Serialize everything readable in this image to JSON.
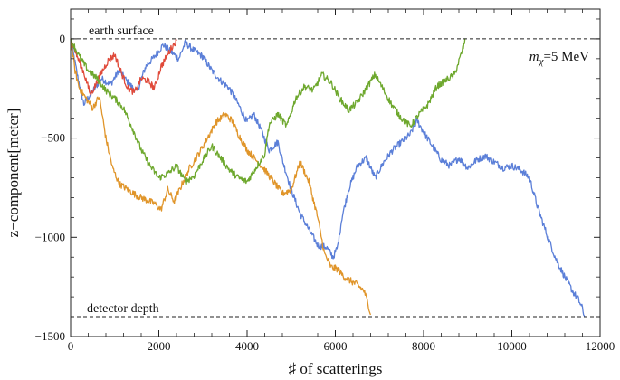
{
  "chart_data": {
    "type": "line",
    "xlabel": "♯ of scatterings",
    "ylabel": "z−component[meter]",
    "xlim": [
      0,
      12000
    ],
    "ylim": [
      -1500,
      150
    ],
    "xticks": [
      {
        "value": 0,
        "label": "0"
      },
      {
        "value": 2000,
        "label": "2000"
      },
      {
        "value": 4000,
        "label": "4000"
      },
      {
        "value": 6000,
        "label": "6000"
      },
      {
        "value": 8000,
        "label": "8000"
      },
      {
        "value": 10000,
        "label": "10000"
      },
      {
        "value": 12000,
        "label": "12000"
      }
    ],
    "yticks": [
      {
        "value": 0,
        "label": "0"
      },
      {
        "value": -500,
        "label": "−500"
      },
      {
        "value": -1000,
        "label": "−1000"
      },
      {
        "value": -1500,
        "label": "−1500"
      }
    ],
    "reference_lines": [
      {
        "y": 0,
        "label": "earth surface",
        "style": "dashed"
      },
      {
        "y": -1400,
        "label": "detector depth",
        "style": "dashed"
      }
    ],
    "annotation": {
      "mass_symbol": "m",
      "mass_subscript": "χ",
      "mass_value": "=5 MeV"
    },
    "series": [
      {
        "color": "#5b7fd8",
        "points": [
          [
            0,
            0
          ],
          [
            150,
            -180
          ],
          [
            300,
            -330
          ],
          [
            450,
            -280
          ],
          [
            700,
            -200
          ],
          [
            900,
            -230
          ],
          [
            1100,
            -160
          ],
          [
            1300,
            -220
          ],
          [
            1500,
            -270
          ],
          [
            1700,
            -140
          ],
          [
            1900,
            -90
          ],
          [
            2100,
            -30
          ],
          [
            2300,
            -70
          ],
          [
            2450,
            -100
          ],
          [
            2600,
            -20
          ],
          [
            2800,
            -60
          ],
          [
            3000,
            -90
          ],
          [
            3200,
            -160
          ],
          [
            3400,
            -210
          ],
          [
            3600,
            -250
          ],
          [
            3800,
            -330
          ],
          [
            4000,
            -420
          ],
          [
            4150,
            -380
          ],
          [
            4300,
            -450
          ],
          [
            4500,
            -560
          ],
          [
            4700,
            -520
          ],
          [
            4800,
            -610
          ],
          [
            5000,
            -760
          ],
          [
            5200,
            -880
          ],
          [
            5400,
            -960
          ],
          [
            5600,
            -1040
          ],
          [
            5800,
            -1050
          ],
          [
            5950,
            -1100
          ],
          [
            6050,
            -1050
          ],
          [
            6150,
            -900
          ],
          [
            6300,
            -760
          ],
          [
            6500,
            -640
          ],
          [
            6700,
            -600
          ],
          [
            6900,
            -700
          ],
          [
            7100,
            -620
          ],
          [
            7300,
            -560
          ],
          [
            7500,
            -520
          ],
          [
            7700,
            -480
          ],
          [
            7850,
            -410
          ],
          [
            8000,
            -470
          ],
          [
            8200,
            -540
          ],
          [
            8400,
            -610
          ],
          [
            8600,
            -640
          ],
          [
            8800,
            -600
          ],
          [
            9000,
            -650
          ],
          [
            9200,
            -610
          ],
          [
            9400,
            -590
          ],
          [
            9600,
            -620
          ],
          [
            9800,
            -650
          ],
          [
            10000,
            -640
          ],
          [
            10200,
            -660
          ],
          [
            10400,
            -700
          ],
          [
            10600,
            -860
          ],
          [
            10800,
            -990
          ],
          [
            11000,
            -1110
          ],
          [
            11200,
            -1200
          ],
          [
            11400,
            -1280
          ],
          [
            11500,
            -1310
          ],
          [
            11600,
            -1360
          ],
          [
            11650,
            -1400
          ]
        ]
      },
      {
        "color": "#e0952a",
        "points": [
          [
            0,
            0
          ],
          [
            100,
            -160
          ],
          [
            200,
            -250
          ],
          [
            350,
            -300
          ],
          [
            500,
            -350
          ],
          [
            650,
            -290
          ],
          [
            800,
            -500
          ],
          [
            950,
            -650
          ],
          [
            1100,
            -730
          ],
          [
            1300,
            -760
          ],
          [
            1500,
            -790
          ],
          [
            1700,
            -810
          ],
          [
            1900,
            -830
          ],
          [
            2050,
            -860
          ],
          [
            2200,
            -760
          ],
          [
            2350,
            -820
          ],
          [
            2550,
            -720
          ],
          [
            2700,
            -650
          ],
          [
            2900,
            -580
          ],
          [
            3100,
            -500
          ],
          [
            3300,
            -420
          ],
          [
            3500,
            -380
          ],
          [
            3650,
            -410
          ],
          [
            3800,
            -480
          ],
          [
            4000,
            -560
          ],
          [
            4200,
            -610
          ],
          [
            4400,
            -660
          ],
          [
            4600,
            -720
          ],
          [
            4800,
            -780
          ],
          [
            5000,
            -760
          ],
          [
            5200,
            -620
          ],
          [
            5400,
            -720
          ],
          [
            5600,
            -900
          ],
          [
            5750,
            -1080
          ],
          [
            5900,
            -1150
          ],
          [
            6050,
            -1160
          ],
          [
            6200,
            -1200
          ],
          [
            6350,
            -1220
          ],
          [
            6500,
            -1240
          ],
          [
            6650,
            -1270
          ],
          [
            6750,
            -1340
          ],
          [
            6800,
            -1390
          ]
        ]
      },
      {
        "color": "#e04a3a",
        "points": [
          [
            0,
            0
          ],
          [
            150,
            -90
          ],
          [
            300,
            -170
          ],
          [
            450,
            -280
          ],
          [
            550,
            -240
          ],
          [
            700,
            -170
          ],
          [
            850,
            -110
          ],
          [
            1000,
            -80
          ],
          [
            1150,
            -170
          ],
          [
            1300,
            -250
          ],
          [
            1450,
            -270
          ],
          [
            1600,
            -200
          ],
          [
            1750,
            -210
          ],
          [
            1900,
            -250
          ],
          [
            2050,
            -140
          ],
          [
            2200,
            -80
          ],
          [
            2300,
            -40
          ],
          [
            2400,
            -10
          ]
        ]
      },
      {
        "color": "#6ea82e",
        "points": [
          [
            0,
            0
          ],
          [
            200,
            -90
          ],
          [
            400,
            -160
          ],
          [
            600,
            -200
          ],
          [
            800,
            -260
          ],
          [
            1000,
            -300
          ],
          [
            1200,
            -350
          ],
          [
            1400,
            -450
          ],
          [
            1600,
            -560
          ],
          [
            1800,
            -640
          ],
          [
            2000,
            -700
          ],
          [
            2200,
            -680
          ],
          [
            2400,
            -640
          ],
          [
            2600,
            -720
          ],
          [
            2800,
            -690
          ],
          [
            3000,
            -610
          ],
          [
            3200,
            -540
          ],
          [
            3400,
            -600
          ],
          [
            3600,
            -660
          ],
          [
            3800,
            -700
          ],
          [
            4000,
            -720
          ],
          [
            4200,
            -650
          ],
          [
            4400,
            -580
          ],
          [
            4500,
            -430
          ],
          [
            4700,
            -380
          ],
          [
            4900,
            -440
          ],
          [
            5100,
            -300
          ],
          [
            5300,
            -240
          ],
          [
            5500,
            -260
          ],
          [
            5700,
            -180
          ],
          [
            5900,
            -220
          ],
          [
            6100,
            -300
          ],
          [
            6300,
            -360
          ],
          [
            6500,
            -320
          ],
          [
            6700,
            -250
          ],
          [
            6900,
            -180
          ],
          [
            7100,
            -260
          ],
          [
            7300,
            -340
          ],
          [
            7500,
            -400
          ],
          [
            7700,
            -440
          ],
          [
            7900,
            -380
          ],
          [
            8100,
            -330
          ],
          [
            8300,
            -240
          ],
          [
            8500,
            -210
          ],
          [
            8700,
            -180
          ],
          [
            8850,
            -80
          ],
          [
            8950,
            0
          ]
        ]
      }
    ]
  }
}
